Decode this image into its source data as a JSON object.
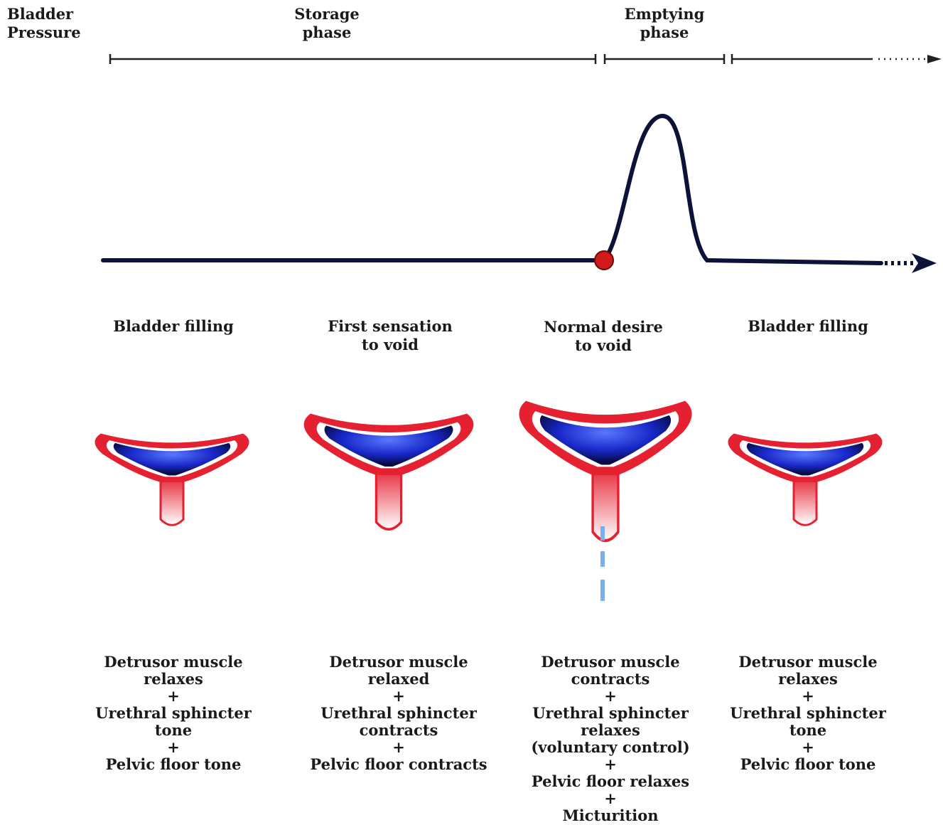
{
  "axis_label": [
    "Bladder",
    "Pressure"
  ],
  "phases": [
    {
      "label": [
        "Storage",
        "phase"
      ]
    },
    {
      "label": [
        "Emptying",
        "phase"
      ]
    }
  ],
  "stages": [
    {
      "label": [
        "Bladder filling"
      ],
      "description": [
        "Detrusor muscle",
        "relaxes",
        "+",
        "Urethral sphincter",
        "tone",
        "+",
        "Pelvic floor tone"
      ]
    },
    {
      "label": [
        "First sensation",
        "to void"
      ],
      "description": [
        "Detrusor muscle",
        "relaxed",
        "+",
        "Urethral sphincter",
        "contracts",
        "+",
        "Pelvic floor contracts"
      ]
    },
    {
      "label": [
        "Normal desire",
        "to void"
      ],
      "description": [
        "Detrusor muscle",
        "contracts",
        "+",
        "Urethral sphincter",
        "relaxes",
        "(voluntary control)",
        "+",
        "Pelvic floor relaxes",
        "+",
        "Micturition"
      ]
    },
    {
      "label": [
        "Bladder filling"
      ],
      "description": [
        "Detrusor muscle",
        "relaxes",
        "+",
        "Urethral sphincter",
        "tone",
        "+",
        "Pelvic floor tone"
      ]
    }
  ]
}
